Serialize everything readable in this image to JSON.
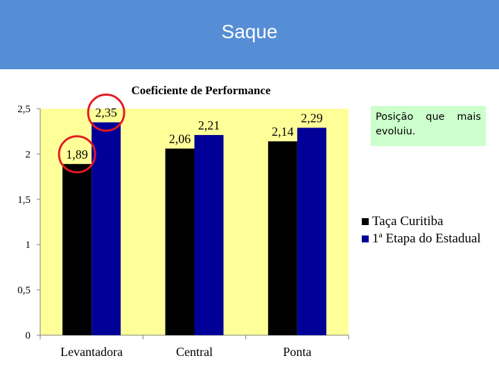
{
  "header": {
    "title": "Saque"
  },
  "note": {
    "text": "Posição que mais evoluiu."
  },
  "colors": {
    "header": "#558ed5",
    "plot_bg": "#ffff99",
    "note_bg": "#ccffcc",
    "highlight_circle": "#e31b23"
  },
  "chart_data": {
    "type": "bar",
    "title": "Coeficiente de Performance",
    "categories": [
      "Levantadora",
      "Central",
      "Ponta"
    ],
    "series": [
      {
        "name": "Taça Curitiba",
        "color": "#000000",
        "values": [
          1.89,
          2.06,
          2.14
        ],
        "labels": [
          "1,89",
          "2,06",
          "2,14"
        ]
      },
      {
        "name": "1ª Etapa do Estadual",
        "color": "#000099",
        "values": [
          2.35,
          2.21,
          2.29
        ],
        "labels": [
          "2,35",
          "2,21",
          "2,29"
        ]
      }
    ],
    "ylim": [
      0,
      2.5
    ],
    "yticks": [
      0,
      0.5,
      1,
      1.5,
      2,
      2.5
    ],
    "ytick_labels": [
      "0",
      "0,5",
      "1",
      "1,5",
      "2",
      "2,5"
    ],
    "xlabel": "",
    "ylabel": "",
    "grid": false,
    "legend_position": "right",
    "highlighted_labels": [
      "1,89",
      "2,35"
    ]
  }
}
